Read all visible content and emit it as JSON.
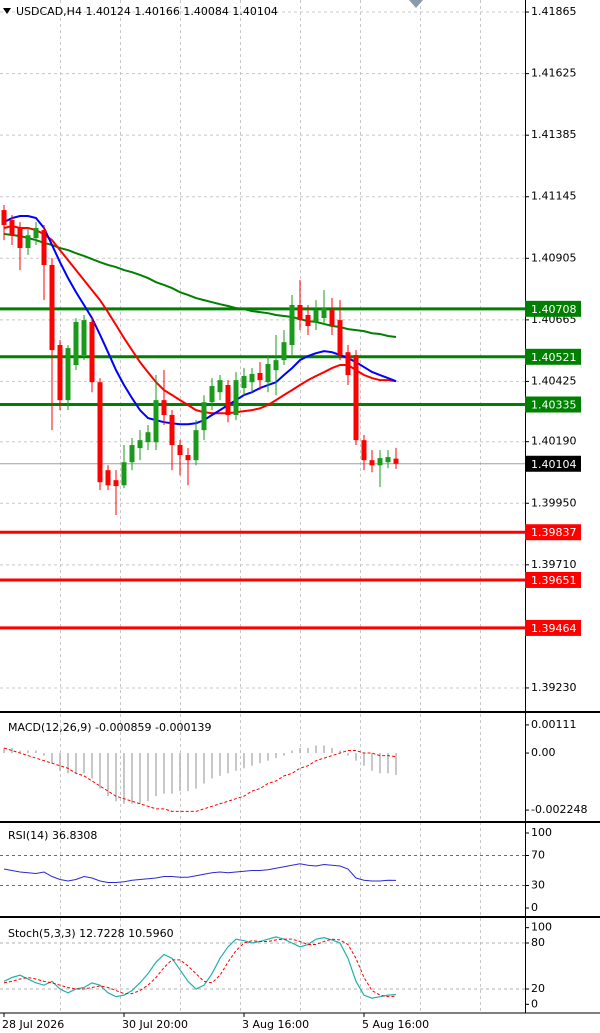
{
  "chart_data": [
    {
      "type": "candlestick",
      "title": "USDCAD,H4  1.40124 1.40166 1.40084 1.40104",
      "categories": [
        "28 Jul 2026",
        null,
        null,
        null,
        null,
        null,
        null,
        null,
        null,
        null,
        null,
        null,
        null,
        null,
        null,
        "30 Jul 20:00",
        null,
        null,
        null,
        null,
        null,
        null,
        null,
        null,
        null,
        null,
        null,
        null,
        null,
        null,
        "3 Aug 16:00",
        null,
        null,
        null,
        null,
        null,
        null,
        null,
        null,
        null,
        null,
        null,
        null,
        null,
        null,
        "5 Aug 16:00",
        null,
        null,
        null,
        null
      ],
      "open": [
        1.41093,
        1.41054,
        1.41023,
        1.40945,
        1.40984,
        1.41015,
        1.40879,
        1.40567,
        1.40352,
        1.40489,
        1.40528,
        1.40657,
        1.40422,
        1.40079,
        1.4004,
        1.4002,
        1.4011,
        1.40165,
        1.40188,
        1.40188,
        1.40352,
        1.40294,
        1.40177,
        1.40138,
        1.40118,
        1.40235,
        1.40344,
        1.40383,
        1.40411,
        1.40294,
        1.40399,
        1.40422,
        1.40458,
        1.40422,
        1.40469,
        1.40508,
        1.40567,
        1.40723,
        1.40684,
        1.40657,
        1.40672,
        1.40703,
        1.40664,
        1.40539,
        1.40528,
        1.40196,
        1.40118,
        1.40098,
        1.4011,
        1.40124
      ],
      "high": [
        1.41113,
        1.41074,
        1.41046,
        1.41023,
        1.41046,
        1.41035,
        1.40906,
        1.40586,
        1.40567,
        1.40672,
        1.40684,
        1.40672,
        1.40438,
        1.40098,
        1.40079,
        1.40177,
        1.40204,
        1.40235,
        1.40255,
        1.4045,
        1.40469,
        1.40313,
        1.40196,
        1.40165,
        1.40274,
        1.40371,
        1.40438,
        1.4045,
        1.4043,
        1.40461,
        1.40477,
        1.40477,
        1.405,
        1.40528,
        1.40606,
        1.40625,
        1.40762,
        1.4082,
        1.40723,
        1.40742,
        1.40781,
        1.4075,
        1.40742,
        1.40567,
        1.40547,
        1.40216,
        1.40157,
        1.40157,
        1.40157,
        1.40166
      ],
      "low": [
        1.40976,
        1.40957,
        1.40859,
        1.40918,
        1.40957,
        1.40742,
        1.40235,
        1.40313,
        1.40313,
        1.40469,
        1.40508,
        1.40383,
        1.40001,
        1.40001,
        1.39904,
        1.40009,
        1.40079,
        1.40118,
        1.40157,
        1.40157,
        1.40255,
        1.40079,
        1.40059,
        1.4002,
        1.40098,
        1.40196,
        1.40313,
        1.40352,
        1.40266,
        1.40274,
        1.40371,
        1.40383,
        1.40391,
        1.40383,
        1.40371,
        1.40489,
        1.40528,
        1.40625,
        1.40606,
        1.40625,
        1.40645,
        1.40606,
        1.40508,
        1.40411,
        1.40177,
        1.40079,
        1.40071,
        1.40013,
        1.40087,
        1.40084
      ],
      "close": [
        1.41035,
        1.40995,
        1.40945,
        1.40995,
        1.41023,
        1.40879,
        1.40547,
        1.40352,
        1.40555,
        1.40657,
        1.40664,
        1.40422,
        1.40032,
        1.4002,
        1.40017,
        1.4011,
        1.40177,
        1.40196,
        1.40227,
        1.40352,
        1.40294,
        1.40177,
        1.40138,
        1.40118,
        1.40235,
        1.40344,
        1.40407,
        1.4043,
        1.40294,
        1.4043,
        1.40446,
        1.40454,
        1.4043,
        1.40493,
        1.40508,
        1.40578,
        1.40723,
        1.40664,
        1.40641,
        1.40703,
        1.40711,
        1.40641,
        1.40528,
        1.4045,
        1.40196,
        1.40118,
        1.40098,
        1.40126,
        1.4013,
        1.40104
      ],
      "up_color": "#1a9a1a",
      "down_color": "#ff0000",
      "series": [
        {
          "color": "#008000",
          "values": [
            1.41,
            1.40996,
            1.40992,
            1.40984,
            1.40976,
            1.40965,
            1.40957,
            1.40945,
            1.40937,
            1.40925,
            1.40914,
            1.40902,
            1.4089,
            1.40879,
            1.40871,
            1.40859,
            1.40851,
            1.4084,
            1.40828,
            1.40812,
            1.40801,
            1.40789,
            1.40773,
            1.40762,
            1.4075,
            1.40742,
            1.40734,
            1.40726,
            1.40719,
            1.40711,
            1.40707,
            1.40699,
            1.40695,
            1.40691,
            1.40684,
            1.4068,
            1.40676,
            1.40668,
            1.4066,
            1.40657,
            1.40649,
            1.40641,
            1.40637,
            1.40629,
            1.40625,
            1.40621,
            1.40613,
            1.4061,
            1.40602,
            1.40598
          ]
        },
        {
          "color": "#ff0000",
          "values": [
            1.41023,
            1.41031,
            1.41023,
            1.41023,
            1.41015,
            1.40999,
            1.40976,
            1.40937,
            1.40898,
            1.40859,
            1.4082,
            1.40781,
            1.40742,
            1.40695,
            1.40645,
            1.40594,
            1.40547,
            1.405,
            1.40461,
            1.40422,
            1.40391,
            1.40372,
            1.40352,
            1.40333,
            1.40313,
            1.40305,
            1.40301,
            1.40301,
            1.40301,
            1.40305,
            1.40309,
            1.40313,
            1.4032,
            1.40333,
            1.40352,
            1.40372,
            1.40391,
            1.40411,
            1.4043,
            1.40446,
            1.40461,
            1.40477,
            1.40489,
            1.40489,
            1.40469,
            1.4045,
            1.40438,
            1.4043,
            1.4043,
            1.40426
          ]
        },
        {
          "color": "#0000ff",
          "values": [
            1.41046,
            1.41062,
            1.4107,
            1.4107,
            1.41062,
            1.41023,
            1.40957,
            1.4089,
            1.40828,
            1.40773,
            1.40723,
            1.40672,
            1.40607,
            1.40539,
            1.40469,
            1.40411,
            1.4036,
            1.40313,
            1.40282,
            1.40274,
            1.40266,
            1.40262,
            1.40258,
            1.40258,
            1.40262,
            1.40274,
            1.40294,
            1.40313,
            1.40333,
            1.40352,
            1.40372,
            1.40383,
            1.40399,
            1.40411,
            1.40422,
            1.4045,
            1.40477,
            1.40508,
            1.40524,
            1.40535,
            1.40543,
            1.40539,
            1.40528,
            1.40516,
            1.405,
            1.40481,
            1.40462,
            1.4045,
            1.40438,
            1.40426
          ]
        }
      ],
      "levels": [
        {
          "value": 1.40708,
          "color": "#008000"
        },
        {
          "value": 1.40521,
          "color": "#008000"
        },
        {
          "value": 1.40335,
          "color": "#008000"
        },
        {
          "value": 1.39837,
          "color": "#ff0000"
        },
        {
          "value": 1.39651,
          "color": "#ff0000"
        },
        {
          "value": 1.39464,
          "color": "#ff0000"
        }
      ],
      "last_price": 1.40104,
      "ylim": [
        1.39144,
        1.41912
      ],
      "yticks": [
        1.41865,
        1.41625,
        1.41385,
        1.41145,
        1.40905,
        1.40665,
        1.40425,
        {
          "value": 1.4019,
          "label": "1.40190"
        },
        {
          "value": 1.3995,
          "label": "1.39950"
        },
        {
          "value": 1.3971,
          "label": "1.39710"
        },
        {
          "value": 1.3923,
          "label": "1.39230"
        }
      ],
      "grid": true
    },
    {
      "type": "macd",
      "title": "MACD(12,26,9) -0.000859 -0.000139",
      "histogram": [
        0.0002,
        0.0002,
        0.0001,
        0.0001,
        0.0001,
        -0.0001,
        -0.0004,
        -0.0007,
        -0.0008,
        -0.0008,
        -0.0008,
        -0.001,
        -0.0014,
        -0.0017,
        -0.0019,
        -0.002,
        -0.002,
        -0.002,
        -0.0019,
        -0.0017,
        -0.0016,
        -0.0016,
        -0.0015,
        -0.0015,
        -0.0014,
        -0.0012,
        -0.001,
        -0.0009,
        -0.0008,
        -0.0007,
        -0.0006,
        -0.0005,
        -0.0004,
        -0.0003,
        -0.0002,
        -0.0001,
        0.0001,
        0.0002,
        0.0002,
        0.0003,
        0.0003,
        0.0002,
        0.0001,
        -0.0001,
        -0.0003,
        -0.0005,
        -0.0007,
        -0.0008,
        -0.0008,
        -0.000859
      ],
      "histogram_color": "#b4b4b4",
      "signal": [
        0.0002,
        0.0001,
        0,
        -0.0001,
        -0.0002,
        -0.0003,
        -0.0004,
        -0.0005,
        -0.0006,
        -0.0008,
        -0.0009,
        -0.0011,
        -0.0013,
        -0.0015,
        -0.0017,
        -0.0018,
        -0.0019,
        -0.002,
        -0.0021,
        -0.0022,
        -0.0022,
        -0.0023,
        -0.0023,
        -0.0023,
        -0.0023,
        -0.0022,
        -0.0021,
        -0.002,
        -0.0019,
        -0.0018,
        -0.0017,
        -0.0015,
        -0.0014,
        -0.0012,
        -0.0011,
        -0.0009,
        -0.0008,
        -0.0006,
        -0.0005,
        -0.0003,
        -0.0002,
        -0.0001,
        0,
        0.0001,
        0.0001,
        0,
        0,
        -0.0001,
        -0.0001,
        -0.000139
      ],
      "signal_color": "#ff0000",
      "ylim": [
        -0.00264,
        0.00154
      ],
      "yticks": [
        0.00111,
        {
          "value": 0,
          "label": "0.00"
        },
        -0.002248
      ]
    },
    {
      "type": "rsi",
      "title": "RSI(14) 36.8308",
      "values": [
        52,
        50,
        48,
        47,
        46,
        48,
        42,
        38,
        36,
        38,
        42,
        40,
        36,
        34,
        34,
        35,
        37,
        38,
        39,
        40,
        42,
        42,
        41,
        41,
        43,
        45,
        47,
        48,
        47,
        48,
        49,
        50,
        50,
        51,
        53,
        55,
        57,
        59,
        57,
        56,
        58,
        57,
        56,
        52,
        40,
        37,
        36,
        36,
        37,
        36.8308
      ],
      "color": "#2a2ad0",
      "levels": [
        70,
        30
      ],
      "ylim": [
        -9.3,
        112
      ],
      "yticks": [
        100,
        70,
        30,
        0
      ]
    },
    {
      "type": "stochastic",
      "title": "Stoch(5,3,3) 12.7228 10.5960",
      "main": [
        30,
        35,
        38,
        33,
        28,
        25,
        30,
        20,
        15,
        20,
        22,
        28,
        25,
        15,
        10,
        12,
        18,
        28,
        40,
        55,
        65,
        60,
        45,
        30,
        20,
        25,
        40,
        60,
        75,
        85,
        83,
        80,
        82,
        85,
        88,
        85,
        80,
        75,
        78,
        85,
        87,
        84,
        80,
        60,
        30,
        12,
        8,
        10,
        12,
        12.7228
      ],
      "main_color": "#20b2aa",
      "signal": [
        28,
        30,
        33,
        35,
        33,
        30,
        28,
        25,
        22,
        20,
        20,
        22,
        24,
        22,
        18,
        14,
        14,
        18,
        25,
        35,
        48,
        58,
        58,
        50,
        40,
        30,
        28,
        38,
        55,
        70,
        80,
        83,
        82,
        82,
        84,
        85,
        85,
        82,
        78,
        78,
        82,
        85,
        84,
        78,
        60,
        35,
        18,
        12,
        10,
        10.596
      ],
      "signal_color": "#ff0000",
      "levels": [
        80,
        20
      ],
      "ylim": [
        -10,
        110
      ],
      "yticks": [
        100,
        80,
        20,
        0
      ]
    }
  ]
}
